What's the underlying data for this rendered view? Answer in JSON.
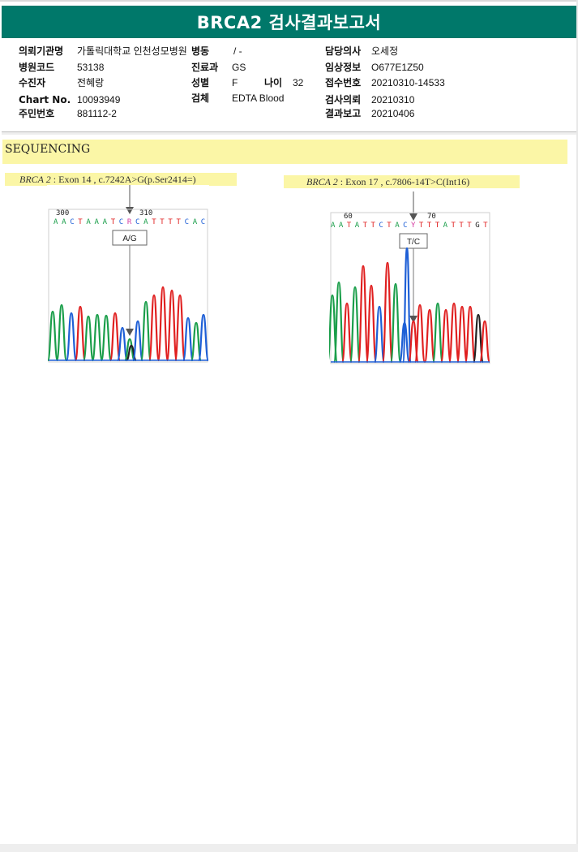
{
  "report": {
    "title": "BRCA2 검사결과보고서"
  },
  "patient": {
    "institution_label": "의뢰기관명",
    "institution_value": "가톨릭대학교 인천성모병원",
    "ward_label": "병동",
    "ward_value": "/ -",
    "doctor_label": "담당의사",
    "doctor_value": "오세정",
    "hospital_code_label": "병원코드",
    "hospital_code_value": "53138",
    "department_label": "진료과",
    "department_value": "GS",
    "clinical_info_label": "임상정보",
    "clinical_info_value": "O677E1Z50",
    "examinee_label": "수진자",
    "examinee_value": "전혜랑",
    "sex_label": "성별",
    "sex_value": "F",
    "age_label": "나이",
    "age_value": "32",
    "receipt_no_label": "접수번호",
    "receipt_no_value": "20210310-14533",
    "chart_no_label": "Chart No.",
    "chart_no_value": "10093949",
    "specimen_label": "검체",
    "specimen_value": "EDTA Blood",
    "request_label": "검사의뢰",
    "request_value": "20210310",
    "resident_no_label": "주민번호",
    "resident_no_value": "881112-2",
    "report_date_label": "결과보고",
    "report_date_value": "20210406"
  },
  "sequencing": {
    "section_title": "SEQUENCING",
    "variants": [
      {
        "gene": "BRCA 2",
        "detail": ": Exon 14 , c.7242A>G(p.Ser2414=)",
        "position_start": "300",
        "position_mid": "310",
        "bases": [
          "A",
          "A",
          "C",
          "T",
          "A",
          "A",
          "A",
          "T",
          "C",
          "R",
          "C",
          "A",
          "T",
          "T",
          "T",
          "T",
          "C",
          "A",
          "C"
        ],
        "call": "A/G"
      },
      {
        "gene": "BRCA 2",
        "detail": ": Exon 17 , c.7806-14T>C(Int16)",
        "position_start": "60",
        "position_mid": "70",
        "bases": [
          "A",
          "A",
          "T",
          "A",
          "T",
          "T",
          "C",
          "T",
          "A",
          "C",
          "Y",
          "T",
          "T",
          "T",
          "A",
          "T",
          "T",
          "T",
          "G",
          "T"
        ],
        "call": "T/C"
      }
    ],
    "base_colors": {
      "A": "#1a9e4a",
      "C": "#1e5fd6",
      "G": "#222222",
      "T": "#e02020",
      "R": "#d63aa0",
      "Y": "#d63aa0"
    }
  }
}
